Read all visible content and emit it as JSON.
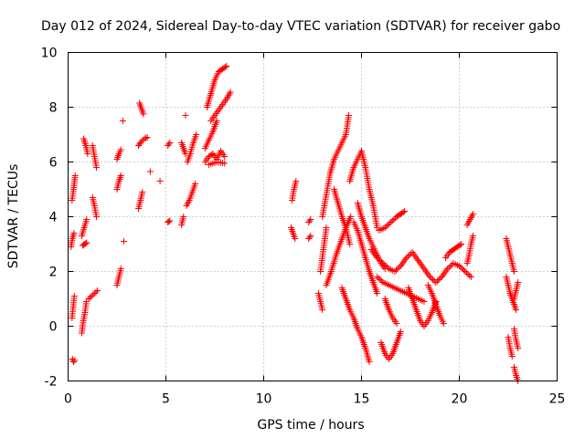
{
  "chart_data": {
    "type": "scatter",
    "title": "Day 012 of 2024, Sidereal Day-to-day VTEC variation (SDTVAR) for receiver gabo",
    "xlabel": "GPS time / hours",
    "ylabel": "SDTVAR / TECUs",
    "xlim": [
      0,
      25
    ],
    "ylim": [
      -2,
      10
    ],
    "xticks": [
      0,
      5,
      10,
      15,
      20,
      25
    ],
    "yticks": [
      -2,
      0,
      2,
      4,
      6,
      8,
      10
    ],
    "xtick_labels": [
      "0",
      "5",
      "10",
      "15",
      "20",
      "25"
    ],
    "ytick_labels": [
      "-2",
      "0",
      "2",
      "4",
      "6",
      "8",
      "10"
    ],
    "grid": true,
    "marker": "+",
    "color": "#ff0000",
    "segments": [
      [
        [
          0.2,
          4.6
        ],
        [
          0.28,
          5.0
        ],
        [
          0.36,
          5.5
        ]
      ],
      [
        [
          0.15,
          2.9
        ],
        [
          0.22,
          3.2
        ],
        [
          0.3,
          3.4
        ]
      ],
      [
        [
          0.2,
          0.3
        ],
        [
          0.26,
          0.7
        ],
        [
          0.32,
          1.1
        ]
      ],
      [
        [
          0.22,
          -1.2
        ],
        [
          0.28,
          -1.3
        ],
        [
          0.34,
          -1.25
        ]
      ],
      [
        [
          0.7,
          3.3
        ],
        [
          0.82,
          3.6
        ],
        [
          0.95,
          3.9
        ]
      ],
      [
        [
          0.75,
          2.95
        ],
        [
          0.85,
          3.0
        ],
        [
          0.95,
          3.05
        ]
      ],
      [
        [
          0.8,
          6.85
        ],
        [
          0.9,
          6.6
        ],
        [
          1.0,
          6.3
        ]
      ],
      [
        [
          0.7,
          -0.25
        ],
        [
          0.78,
          0.2
        ],
        [
          0.86,
          0.5
        ],
        [
          0.94,
          0.9
        ]
      ],
      [
        [
          1.25,
          6.6
        ],
        [
          1.35,
          6.2
        ],
        [
          1.45,
          5.8
        ]
      ],
      [
        [
          1.25,
          4.7
        ],
        [
          1.35,
          4.4
        ],
        [
          1.45,
          4.0
        ]
      ],
      [
        [
          1.05,
          1.0
        ],
        [
          1.2,
          1.1
        ],
        [
          1.35,
          1.2
        ],
        [
          1.5,
          1.3
        ]
      ],
      [
        [
          2.5,
          1.5
        ],
        [
          2.6,
          1.8
        ],
        [
          2.7,
          2.1
        ]
      ],
      [
        [
          2.5,
          5.0
        ],
        [
          2.6,
          5.3
        ],
        [
          2.7,
          5.5
        ]
      ],
      [
        [
          2.5,
          6.1
        ],
        [
          2.6,
          6.3
        ],
        [
          2.7,
          6.45
        ]
      ],
      [
        [
          2.8,
          7.5
        ]
      ],
      [
        [
          2.85,
          3.1
        ]
      ],
      [
        [
          3.6,
          4.3
        ],
        [
          3.7,
          4.6
        ],
        [
          3.8,
          4.9
        ]
      ],
      [
        [
          3.65,
          8.15
        ],
        [
          3.75,
          7.95
        ],
        [
          3.85,
          7.75
        ]
      ],
      [
        [
          3.6,
          6.6
        ],
        [
          3.75,
          6.75
        ],
        [
          3.9,
          6.85
        ],
        [
          4.05,
          6.9
        ]
      ],
      [
        [
          4.2,
          5.65
        ]
      ],
      [
        [
          4.7,
          5.3
        ]
      ],
      [
        [
          5.1,
          3.8
        ],
        [
          5.2,
          3.85
        ]
      ],
      [
        [
          5.1,
          6.6
        ],
        [
          5.2,
          6.7
        ]
      ],
      [
        [
          5.8,
          3.7
        ],
        [
          5.9,
          4.0
        ]
      ],
      [
        [
          5.8,
          6.7
        ],
        [
          5.9,
          6.5
        ],
        [
          6.0,
          6.3
        ]
      ],
      [
        [
          6.05,
          4.4
        ],
        [
          6.2,
          4.6
        ],
        [
          6.35,
          4.9
        ],
        [
          6.5,
          5.2
        ]
      ],
      [
        [
          6.0,
          7.7
        ]
      ],
      [
        [
          6.1,
          6.0
        ],
        [
          6.25,
          6.3
        ],
        [
          6.4,
          6.7
        ],
        [
          6.55,
          7.0
        ]
      ],
      [
        [
          7.0,
          6.0
        ],
        [
          7.2,
          6.2
        ],
        [
          7.4,
          6.3
        ],
        [
          7.6,
          6.1
        ],
        [
          7.8,
          6.4
        ],
        [
          8.0,
          6.2
        ]
      ],
      [
        [
          7.0,
          6.5
        ],
        [
          7.2,
          6.8
        ],
        [
          7.4,
          7.1
        ],
        [
          7.6,
          7.5
        ]
      ],
      [
        [
          7.1,
          8.0
        ],
        [
          7.3,
          8.5
        ],
        [
          7.5,
          9.0
        ],
        [
          7.7,
          9.3
        ],
        [
          7.9,
          9.4
        ],
        [
          8.1,
          9.5
        ]
      ],
      [
        [
          7.3,
          7.5
        ],
        [
          7.5,
          7.7
        ],
        [
          7.7,
          7.9
        ],
        [
          7.9,
          8.1
        ],
        [
          8.1,
          8.3
        ],
        [
          8.3,
          8.55
        ]
      ],
      [
        [
          7.2,
          5.9
        ],
        [
          7.6,
          6.0
        ],
        [
          8.0,
          5.95
        ]
      ],
      [
        [
          11.4,
          3.6
        ],
        [
          11.5,
          3.4
        ],
        [
          11.6,
          3.2
        ]
      ],
      [
        [
          11.45,
          4.6
        ],
        [
          11.55,
          5.0
        ],
        [
          11.65,
          5.3
        ]
      ],
      [
        [
          12.3,
          3.8
        ],
        [
          12.4,
          3.9
        ]
      ],
      [
        [
          12.3,
          3.2
        ],
        [
          12.4,
          3.3
        ]
      ],
      [
        [
          12.8,
          1.2
        ],
        [
          12.9,
          0.9
        ],
        [
          13.0,
          0.6
        ]
      ],
      [
        [
          12.9,
          2.0
        ],
        [
          13.05,
          2.8
        ],
        [
          13.2,
          3.6
        ]
      ],
      [
        [
          13.0,
          4.0
        ],
        [
          13.2,
          4.8
        ],
        [
          13.4,
          5.6
        ],
        [
          13.6,
          6.1
        ],
        [
          13.8,
          6.4
        ],
        [
          14.0,
          6.7
        ],
        [
          14.2,
          7.0
        ],
        [
          14.35,
          7.7
        ]
      ],
      [
        [
          13.2,
          1.5
        ],
        [
          13.45,
          2.0
        ],
        [
          13.7,
          2.6
        ],
        [
          13.95,
          3.1
        ],
        [
          14.2,
          3.6
        ],
        [
          14.45,
          4.0
        ]
      ],
      [
        [
          13.6,
          5.0
        ],
        [
          13.8,
          4.5
        ],
        [
          14.0,
          4.0
        ],
        [
          14.2,
          3.6
        ],
        [
          14.4,
          3.0
        ]
      ],
      [
        [
          14.0,
          1.4
        ],
        [
          14.2,
          1.0
        ],
        [
          14.4,
          0.6
        ],
        [
          14.6,
          0.3
        ],
        [
          14.8,
          -0.1
        ],
        [
          15.0,
          -0.4
        ],
        [
          15.2,
          -0.8
        ],
        [
          15.4,
          -1.3
        ]
      ],
      [
        [
          14.4,
          5.3
        ],
        [
          14.6,
          5.8
        ],
        [
          14.8,
          6.1
        ],
        [
          15.0,
          6.4
        ],
        [
          15.2,
          5.8
        ],
        [
          15.4,
          5.0
        ],
        [
          15.6,
          4.4
        ],
        [
          15.8,
          3.6
        ]
      ],
      [
        [
          14.6,
          3.8
        ],
        [
          14.8,
          3.5
        ],
        [
          15.0,
          3.0
        ],
        [
          15.2,
          2.5
        ],
        [
          15.4,
          2.0
        ],
        [
          15.6,
          1.6
        ],
        [
          15.8,
          1.2
        ]
      ],
      [
        [
          14.8,
          4.5
        ],
        [
          15.0,
          4.0
        ],
        [
          15.2,
          3.6
        ],
        [
          15.4,
          3.2
        ],
        [
          15.6,
          2.9
        ],
        [
          15.8,
          2.6
        ],
        [
          16.0,
          2.3
        ],
        [
          16.2,
          2.1
        ]
      ],
      [
        [
          15.5,
          2.8
        ],
        [
          15.8,
          2.5
        ],
        [
          16.1,
          2.3
        ],
        [
          16.4,
          2.1
        ],
        [
          16.7,
          2.0
        ],
        [
          17.0,
          2.2
        ],
        [
          17.3,
          2.5
        ],
        [
          17.6,
          2.7
        ],
        [
          17.9,
          2.4
        ],
        [
          18.2,
          2.1
        ],
        [
          18.5,
          1.8
        ],
        [
          18.8,
          1.6
        ],
        [
          19.1,
          1.8
        ],
        [
          19.4,
          2.1
        ],
        [
          19.7,
          2.3
        ],
        [
          20.0,
          2.2
        ],
        [
          20.3,
          2.0
        ],
        [
          20.6,
          1.8
        ]
      ],
      [
        [
          15.8,
          1.8
        ],
        [
          16.1,
          1.6
        ],
        [
          16.4,
          1.5
        ],
        [
          16.7,
          1.4
        ],
        [
          17.0,
          1.3
        ],
        [
          17.3,
          1.2
        ],
        [
          17.6,
          1.1
        ],
        [
          17.9,
          1.0
        ],
        [
          18.2,
          0.9
        ]
      ],
      [
        [
          15.9,
          3.5
        ],
        [
          16.2,
          3.6
        ],
        [
          16.5,
          3.8
        ],
        [
          16.8,
          4.0
        ],
        [
          17.0,
          4.1
        ],
        [
          17.2,
          4.2
        ]
      ],
      [
        [
          16.0,
          -0.6
        ],
        [
          16.2,
          -1.0
        ],
        [
          16.4,
          -1.2
        ],
        [
          16.6,
          -1.0
        ],
        [
          16.8,
          -0.6
        ],
        [
          17.0,
          -0.2
        ]
      ],
      [
        [
          16.2,
          1.0
        ],
        [
          16.4,
          0.6
        ],
        [
          16.6,
          0.3
        ],
        [
          16.8,
          0.1
        ]
      ],
      [
        [
          17.4,
          1.4
        ],
        [
          17.6,
          1.0
        ],
        [
          17.8,
          0.6
        ],
        [
          18.0,
          0.2
        ],
        [
          18.2,
          0.0
        ],
        [
          18.4,
          0.2
        ],
        [
          18.6,
          0.5
        ],
        [
          18.8,
          0.9
        ]
      ],
      [
        [
          18.4,
          1.5
        ],
        [
          18.6,
          1.2
        ],
        [
          18.8,
          0.8
        ],
        [
          19.0,
          0.4
        ],
        [
          19.2,
          0.1
        ]
      ],
      [
        [
          19.3,
          2.5
        ],
        [
          19.5,
          2.7
        ],
        [
          19.7,
          2.8
        ],
        [
          19.9,
          2.9
        ],
        [
          20.1,
          3.0
        ]
      ],
      [
        [
          20.4,
          2.3
        ],
        [
          20.5,
          2.6
        ],
        [
          20.6,
          3.0
        ],
        [
          20.7,
          3.3
        ]
      ],
      [
        [
          20.4,
          3.7
        ],
        [
          20.55,
          3.9
        ],
        [
          20.7,
          4.1
        ]
      ],
      [
        [
          22.4,
          3.2
        ],
        [
          22.5,
          2.9
        ],
        [
          22.6,
          2.6
        ],
        [
          22.7,
          2.3
        ],
        [
          22.8,
          2.0
        ]
      ],
      [
        [
          22.4,
          1.8
        ],
        [
          22.5,
          1.5
        ],
        [
          22.6,
          1.2
        ],
        [
          22.7,
          1.0
        ],
        [
          22.8,
          0.8
        ],
        [
          22.9,
          0.6
        ]
      ],
      [
        [
          22.5,
          -0.4
        ],
        [
          22.6,
          -0.8
        ],
        [
          22.7,
          -1.1
        ]
      ],
      [
        [
          22.8,
          1.0
        ],
        [
          22.9,
          1.3
        ],
        [
          23.0,
          1.6
        ]
      ],
      [
        [
          22.8,
          -0.1
        ],
        [
          22.9,
          -0.5
        ],
        [
          23.0,
          -0.8
        ]
      ],
      [
        [
          22.8,
          -1.5
        ],
        [
          22.9,
          -1.8
        ],
        [
          23.0,
          -2.0
        ]
      ]
    ]
  }
}
